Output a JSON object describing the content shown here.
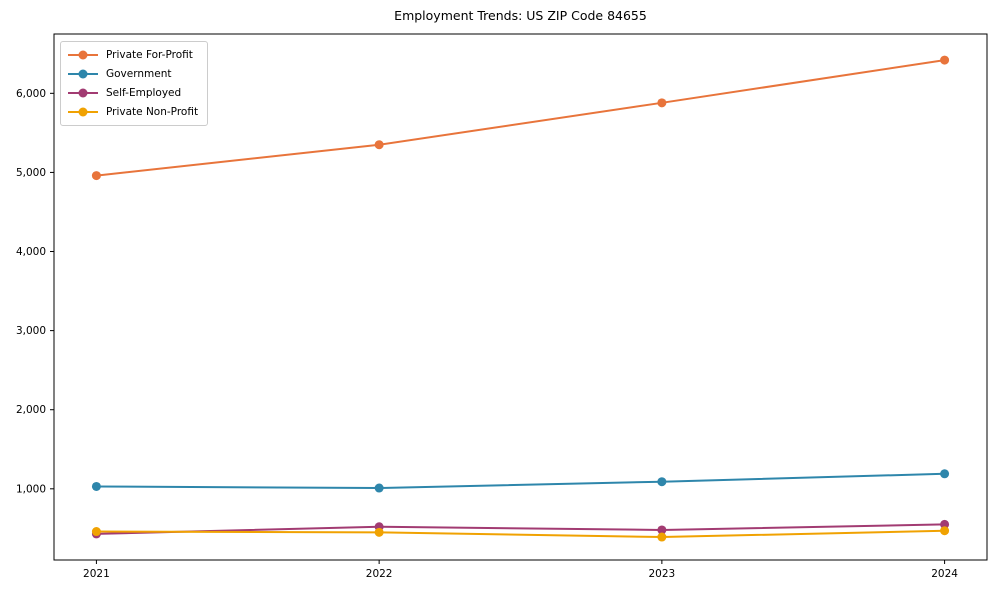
{
  "chart_data": {
    "type": "line",
    "title": "Employment Trends: US ZIP Code 84655",
    "categories": [
      2021,
      2022,
      2023,
      2024
    ],
    "series": [
      {
        "name": "Private For-Profit",
        "color": "#E8743B",
        "values": [
          4960,
          5350,
          5880,
          6420
        ]
      },
      {
        "name": "Government",
        "color": "#2E86AB",
        "values": [
          1030,
          1010,
          1090,
          1190
        ]
      },
      {
        "name": "Self-Employed",
        "color": "#A23B72",
        "values": [
          430,
          520,
          480,
          550
        ]
      },
      {
        "name": "Private Non-Profit",
        "color": "#F0A202",
        "values": [
          460,
          450,
          390,
          470
        ]
      }
    ],
    "xlabel": "",
    "ylabel": "",
    "yticks": [
      {
        "value": 1000,
        "label": "1,000"
      },
      {
        "value": 2000,
        "label": "2,000"
      },
      {
        "value": 3000,
        "label": "3,000"
      },
      {
        "value": 4000,
        "label": "4,000"
      },
      {
        "value": 5000,
        "label": "5,000"
      },
      {
        "value": 6000,
        "label": "6,000"
      }
    ],
    "xlim": [
      2020.85,
      2024.15
    ],
    "ylim": [
      100,
      6750
    ],
    "grid": false,
    "legend_position": "upper-left",
    "marker": "circle",
    "marker_size": 4.5,
    "line_width": 2,
    "axis_color": "#000000",
    "tick_label_color": "#000000"
  }
}
